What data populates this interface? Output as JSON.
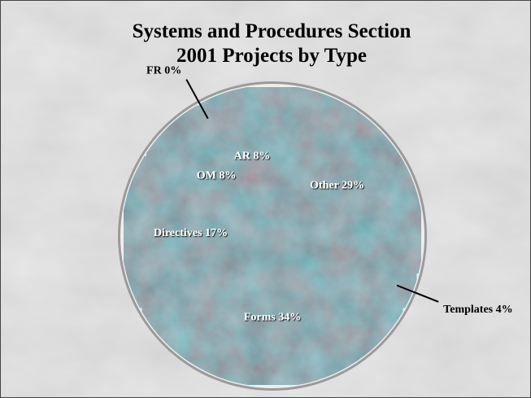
{
  "chart_data": {
    "type": "pie",
    "title": [
      "Systems and Procedures Section",
      "2001 Projects by Type"
    ],
    "categories": [
      "Other",
      "Templates",
      "Forms",
      "Directives",
      "OM",
      "FR",
      "AR"
    ],
    "values": [
      29,
      4,
      34,
      17,
      8,
      0,
      8
    ],
    "value_labels": [
      "29%",
      "4%",
      "34%",
      "17%",
      "8%",
      "0%",
      "8%"
    ],
    "color": "#3e5a66"
  }
}
